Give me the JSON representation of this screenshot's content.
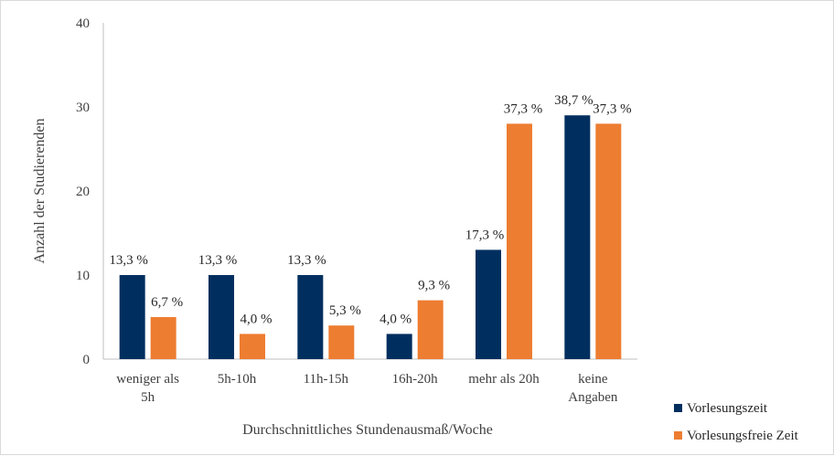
{
  "chart_data": {
    "type": "bar",
    "xlabel": "Durchschnittliches Stundenausmaß/Woche",
    "ylabel": "Anzahl der Studierenden",
    "ylim": [
      0,
      40
    ],
    "yticks": [
      "0",
      "10",
      "20",
      "30",
      "40"
    ],
    "categories": [
      [
        "weniger als",
        "5h"
      ],
      [
        "5h-10h"
      ],
      [
        "11h-15h"
      ],
      [
        "16h-20h"
      ],
      [
        "mehr als 20h"
      ],
      [
        "keine",
        "Angaben"
      ]
    ],
    "series": [
      {
        "name": "Vorlesungszeit",
        "color": "#002f5f",
        "values": [
          10,
          10,
          10,
          3,
          13,
          29
        ],
        "labels": [
          "13,3 %",
          "13,3 %",
          "13,3 %",
          "4,0 %",
          "17,3 %",
          "38,7 %"
        ]
      },
      {
        "name": "Vorlesungsfreie Zeit",
        "color": "#ed7d31",
        "values": [
          5,
          3,
          4,
          7,
          28,
          28
        ],
        "labels": [
          "6,7 %",
          "4,0 %",
          "5,3 %",
          "9,3 %",
          "37,3 %",
          "37,3 %"
        ]
      }
    ],
    "grid": false,
    "legend": "bottom-right"
  }
}
